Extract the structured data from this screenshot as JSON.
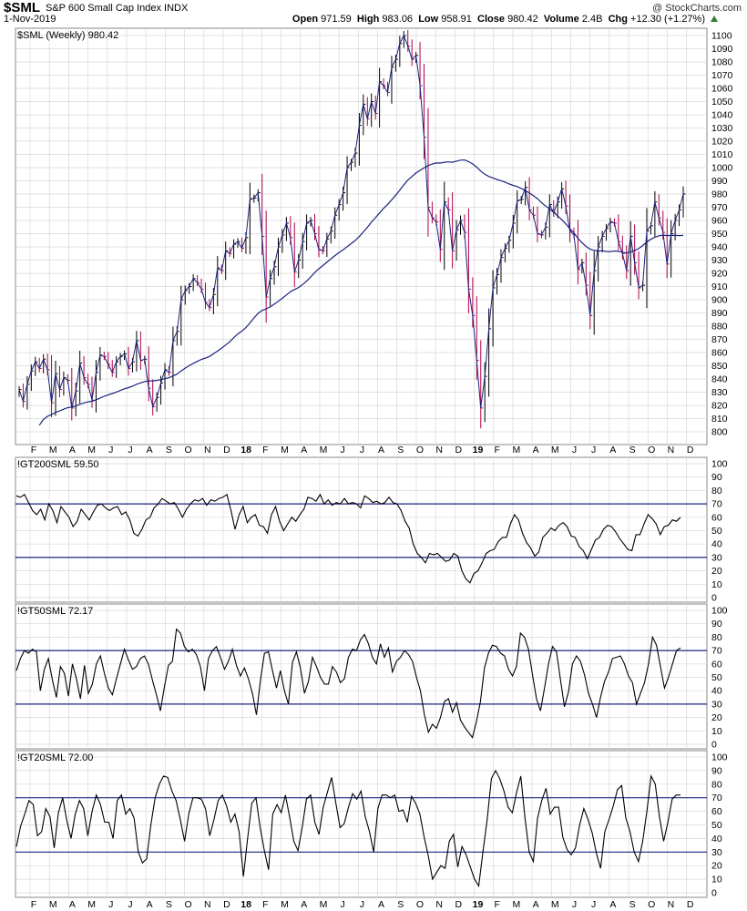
{
  "header": {
    "symbol": "$SML",
    "name": "S&P 600 Small Cap Index",
    "exchange": "INDX",
    "date": "1-Nov-2019",
    "credit": "@ StockCharts.com",
    "open_label": "Open",
    "open": "971.59",
    "high_label": "High",
    "high": "983.06",
    "low_label": "Low",
    "low": "958.91",
    "close_label": "Close",
    "close": "980.42",
    "volume_label": "Volume",
    "volume": "2.4B",
    "chg_label": "Chg",
    "chg": "+12.30 (+1.27%)"
  },
  "colors": {
    "price_up": "#000000",
    "price_down": "#b0004a",
    "ma": "#1a237e",
    "ref_line": "#1a237e",
    "grid": "#d8d8d8"
  },
  "chart_data": [
    {
      "type": "ohlc",
      "panel": "price",
      "legend": "$SML (Weekly) 980.42",
      "ylim": [
        790,
        1105
      ],
      "yticks": [
        800,
        810,
        820,
        830,
        840,
        850,
        860,
        870,
        880,
        890,
        900,
        910,
        920,
        930,
        940,
        950,
        960,
        970,
        980,
        990,
        1000,
        1010,
        1020,
        1030,
        1040,
        1050,
        1060,
        1070,
        1080,
        1090,
        1100
      ],
      "x_labels": [
        "F",
        "M",
        "A",
        "M",
        "J",
        "J",
        "A",
        "S",
        "O",
        "N",
        "D",
        "18",
        "F",
        "M",
        "A",
        "M",
        "J",
        "J",
        "A",
        "S",
        "O",
        "N",
        "D",
        "19",
        "F",
        "M",
        "A",
        "M",
        "J",
        "J",
        "A",
        "S",
        "O",
        "N",
        "D"
      ],
      "close": [
        832,
        823,
        836,
        846,
        853,
        848,
        855,
        847,
        822,
        844,
        832,
        841,
        839,
        818,
        831,
        852,
        841,
        836,
        824,
        845,
        858,
        857,
        851,
        845,
        853,
        857,
        859,
        848,
        853,
        869,
        854,
        855,
        833,
        819,
        826,
        837,
        847,
        845,
        869,
        876,
        900,
        907,
        910,
        916,
        913,
        908,
        898,
        894,
        904,
        924,
        922,
        937,
        935,
        942,
        944,
        939,
        947,
        976,
        977,
        981,
        948,
        902,
        916,
        925,
        940,
        949,
        958,
        947,
        921,
        930,
        944,
        958,
        960,
        950,
        938,
        937,
        946,
        952,
        964,
        972,
        981,
        1000,
        1004,
        1011,
        1032,
        1048,
        1037,
        1050,
        1041,
        1065,
        1062,
        1057,
        1076,
        1082,
        1094,
        1100,
        1092,
        1082,
        1085,
        1062,
        1023,
        970,
        962,
        959,
        938,
        974,
        968,
        937,
        953,
        960,
        951,
        908,
        888,
        854,
        818,
        842,
        878,
        909,
        919,
        932,
        939,
        945,
        958,
        975,
        976,
        985,
        968,
        964,
        950,
        949,
        955,
        972,
        966,
        974,
        984,
        971,
        952,
        949,
        923,
        928,
        911,
        888,
        922,
        940,
        948,
        954,
        959,
        958,
        944,
        935,
        922,
        948,
        928,
        909,
        911,
        952,
        956,
        974,
        962,
        951,
        927,
        950,
        960,
        968,
        980
      ],
      "ma_period": 40,
      "ma_first": 805
    },
    {
      "type": "line",
      "panel": "indicator",
      "legend": "!GT200SML 59.50",
      "ylim": [
        0,
        100
      ],
      "yticks": [
        0,
        10,
        20,
        30,
        40,
        50,
        60,
        70,
        80,
        90,
        100
      ],
      "reference_lines": [
        30,
        70
      ],
      "x_labels": [
        "F",
        "M",
        "A",
        "M",
        "J",
        "J",
        "A",
        "S",
        "O",
        "N",
        "D",
        "18",
        "F",
        "M",
        "A",
        "M",
        "J",
        "J",
        "A",
        "S",
        "O",
        "N",
        "D",
        "19",
        "F",
        "M",
        "A",
        "M",
        "J",
        "J",
        "A",
        "S",
        "O",
        "N",
        "D"
      ],
      "values": [
        76,
        75,
        77,
        71,
        65,
        62,
        66,
        58,
        70,
        65,
        56,
        68,
        64,
        60,
        53,
        57,
        66,
        62,
        58,
        64,
        69,
        70,
        67,
        65,
        67,
        68,
        62,
        64,
        58,
        48,
        46,
        51,
        58,
        60,
        67,
        70,
        74,
        72,
        70,
        71,
        66,
        60,
        66,
        70,
        73,
        72,
        74,
        69,
        73,
        72,
        74,
        75,
        77,
        65,
        51,
        62,
        68,
        56,
        60,
        62,
        54,
        53,
        48,
        62,
        68,
        57,
        50,
        55,
        60,
        57,
        62,
        66,
        75,
        74,
        72,
        77,
        70,
        73,
        69,
        71,
        70,
        74,
        70,
        71,
        70,
        67,
        76,
        74,
        71,
        72,
        70,
        71,
        75,
        71,
        70,
        65,
        57,
        52,
        40,
        33,
        30,
        26,
        33,
        32,
        33,
        30,
        27,
        28,
        33,
        31,
        20,
        14,
        11,
        18,
        20,
        26,
        33,
        35,
        36,
        42,
        45,
        45,
        55,
        62,
        58,
        48,
        41,
        37,
        31,
        34,
        45,
        48,
        52,
        50,
        54,
        56,
        53,
        46,
        45,
        38,
        35,
        29,
        36,
        43,
        45,
        51,
        54,
        53,
        49,
        44,
        40,
        36,
        35,
        47,
        47,
        55,
        62,
        59,
        55,
        47,
        53,
        54,
        58,
        57,
        60
      ],
      "unit": "percent"
    },
    {
      "type": "line",
      "panel": "indicator",
      "legend": "!GT50SML 72.17",
      "ylim": [
        0,
        100
      ],
      "yticks": [
        0,
        10,
        20,
        30,
        40,
        50,
        60,
        70,
        80,
        90,
        100
      ],
      "reference_lines": [
        30,
        70
      ],
      "x_labels": [
        "F",
        "M",
        "A",
        "M",
        "J",
        "J",
        "A",
        "S",
        "O",
        "N",
        "D",
        "18",
        "F",
        "M",
        "A",
        "M",
        "J",
        "J",
        "A",
        "S",
        "O",
        "N",
        "D",
        "19",
        "F",
        "M",
        "A",
        "M",
        "J",
        "J",
        "A",
        "S",
        "O",
        "N",
        "D"
      ],
      "values": [
        55,
        64,
        70,
        68,
        71,
        69,
        40,
        56,
        64,
        48,
        35,
        58,
        53,
        36,
        60,
        49,
        34,
        59,
        38,
        45,
        60,
        66,
        53,
        42,
        37,
        49,
        60,
        71,
        63,
        56,
        58,
        64,
        66,
        60,
        48,
        37,
        25,
        43,
        59,
        62,
        86,
        83,
        73,
        69,
        71,
        67,
        58,
        40,
        64,
        70,
        73,
        65,
        56,
        62,
        71,
        59,
        51,
        57,
        49,
        38,
        22,
        48,
        68,
        69,
        55,
        42,
        55,
        40,
        30,
        61,
        69,
        57,
        38,
        47,
        65,
        58,
        50,
        45,
        45,
        58,
        54,
        46,
        49,
        65,
        71,
        70,
        78,
        82,
        75,
        65,
        60,
        75,
        65,
        72,
        54,
        62,
        65,
        70,
        67,
        62,
        50,
        40,
        22,
        9,
        15,
        12,
        20,
        32,
        34,
        24,
        31,
        18,
        13,
        9,
        5,
        17,
        32,
        57,
        68,
        74,
        73,
        68,
        66,
        56,
        51,
        58,
        83,
        80,
        71,
        52,
        34,
        25,
        42,
        60,
        73,
        69,
        48,
        28,
        39,
        60,
        66,
        62,
        52,
        38,
        30,
        20,
        35,
        47,
        54,
        64,
        65,
        66,
        60,
        51,
        46,
        30,
        38,
        46,
        60,
        80,
        74,
        58,
        42,
        50,
        60,
        70,
        72
      ],
      "unit": "percent"
    },
    {
      "type": "line",
      "panel": "indicator",
      "legend": "!GT20SML 72.00",
      "ylim": [
        0,
        100
      ],
      "yticks": [
        0,
        10,
        20,
        30,
        40,
        50,
        60,
        70,
        80,
        90,
        100
      ],
      "reference_lines": [
        30,
        70
      ],
      "x_labels": [
        "F",
        "M",
        "A",
        "M",
        "J",
        "J",
        "A",
        "S",
        "O",
        "N",
        "D",
        "18",
        "F",
        "M",
        "A",
        "M",
        "J",
        "J",
        "A",
        "S",
        "O",
        "N",
        "D",
        "19",
        "F",
        "M",
        "A",
        "M",
        "J",
        "J",
        "A",
        "S",
        "O",
        "N",
        "D"
      ],
      "values": [
        34,
        49,
        58,
        68,
        65,
        42,
        45,
        62,
        56,
        33,
        59,
        70,
        53,
        40,
        58,
        68,
        62,
        42,
        60,
        72,
        65,
        52,
        52,
        40,
        68,
        72,
        58,
        62,
        55,
        30,
        22,
        25,
        50,
        70,
        80,
        86,
        85,
        75,
        68,
        54,
        38,
        58,
        70,
        70,
        69,
        62,
        42,
        54,
        68,
        72,
        64,
        52,
        58,
        45,
        12,
        40,
        66,
        70,
        48,
        31,
        17,
        58,
        65,
        59,
        72,
        56,
        38,
        31,
        48,
        69,
        72,
        52,
        43,
        63,
        74,
        85,
        66,
        48,
        51,
        63,
        73,
        69,
        75,
        56,
        45,
        30,
        62,
        72,
        72,
        70,
        72,
        60,
        61,
        52,
        71,
        66,
        58,
        41,
        27,
        10,
        15,
        20,
        18,
        38,
        43,
        19,
        34,
        28,
        19,
        10,
        5,
        30,
        54,
        84,
        90,
        84,
        75,
        63,
        59,
        74,
        86,
        55,
        30,
        23,
        55,
        68,
        77,
        58,
        63,
        63,
        41,
        32,
        28,
        33,
        50,
        62,
        54,
        44,
        29,
        18,
        45,
        54,
        64,
        76,
        79,
        55,
        45,
        30,
        23,
        38,
        60,
        86,
        80,
        56,
        38,
        52,
        69,
        72,
        72
      ],
      "unit": "percent"
    }
  ]
}
